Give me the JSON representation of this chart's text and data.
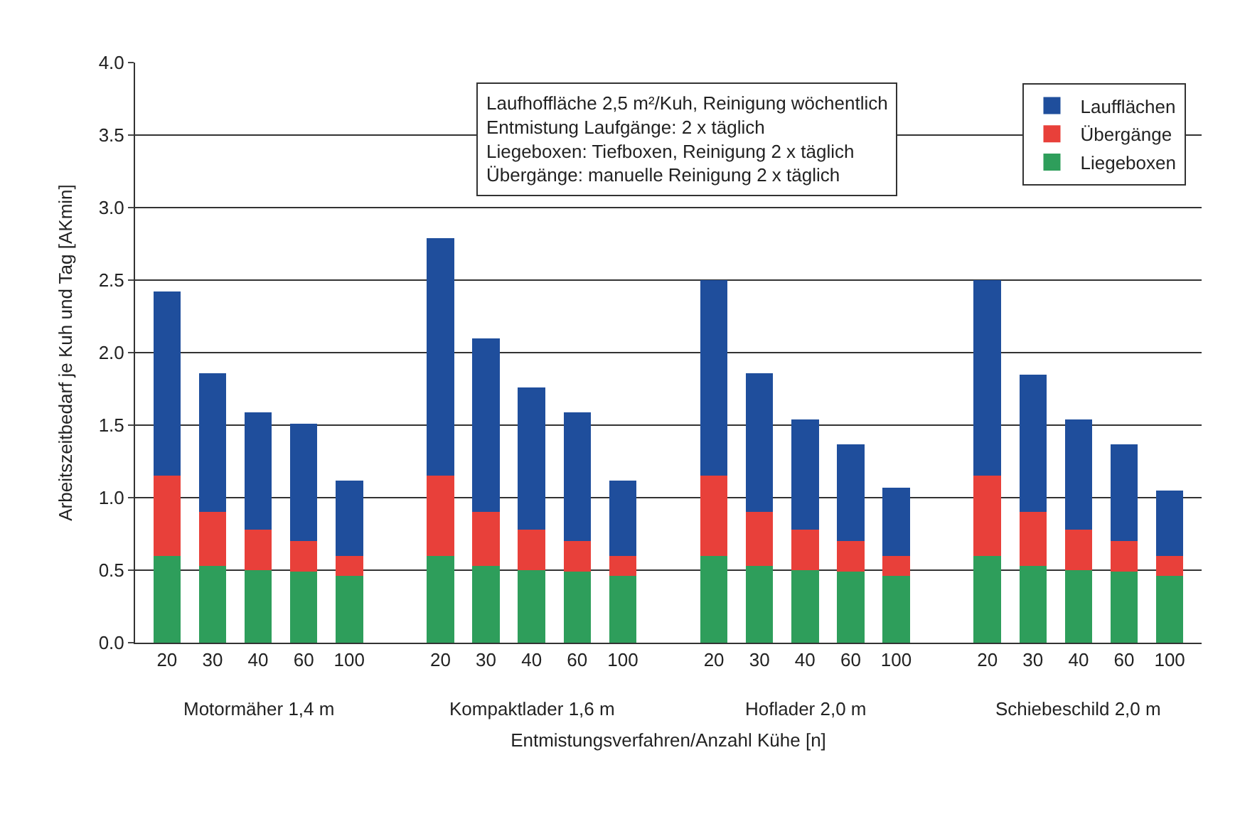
{
  "chart_data": {
    "type": "bar",
    "stacked": true,
    "xlabel": "Entmistungsverfahren/Anzahl Kühe [n]",
    "ylabel": "Arbeitszeitbedarf je Kuh und Tag [AKmin]",
    "categories": [
      "20",
      "30",
      "40",
      "60",
      "100",
      null,
      "20",
      "30",
      "40",
      "60",
      "100",
      null,
      "20",
      "30",
      "40",
      "60",
      "100",
      null,
      "20",
      "30",
      "40",
      "60",
      "100"
    ],
    "series": [
      {
        "name": "Liegeboxen",
        "color": "#2e9e5b",
        "values": [
          0.6,
          0.53,
          0.5,
          0.49,
          0.46,
          null,
          0.6,
          0.53,
          0.5,
          0.49,
          0.46,
          null,
          0.6,
          0.53,
          0.5,
          0.49,
          0.46,
          null,
          0.6,
          0.53,
          0.5,
          0.49,
          0.46
        ]
      },
      {
        "name": "Übergänge",
        "color": "#e8403a",
        "values": [
          0.55,
          0.37,
          0.28,
          0.21,
          0.14,
          null,
          0.55,
          0.37,
          0.28,
          0.21,
          0.14,
          null,
          0.55,
          0.37,
          0.28,
          0.21,
          0.14,
          null,
          0.55,
          0.37,
          0.28,
          0.21,
          0.14
        ]
      },
      {
        "name": "Laufflächen",
        "color": "#1f4e9c",
        "values": [
          1.27,
          0.96,
          0.81,
          0.81,
          0.52,
          null,
          1.64,
          1.2,
          0.98,
          0.89,
          0.52,
          null,
          1.35,
          0.96,
          0.76,
          0.67,
          0.47,
          null,
          1.35,
          0.95,
          0.76,
          0.67,
          0.45
        ]
      }
    ],
    "ylim": [
      0,
      4
    ],
    "yticks": [
      {
        "value": 0,
        "label": "0.0"
      },
      0.5,
      {
        "value": 1,
        "label": "1.0"
      },
      1.5,
      {
        "value": 2,
        "label": "2.0"
      },
      2.5,
      {
        "value": 3,
        "label": "3.0"
      },
      3.5,
      {
        "value": 4,
        "label": "4.0"
      }
    ],
    "grid": "y",
    "legend": "top right",
    "annotations": [
      "Motormäher 1,4 m",
      "Kompaktlader 1,6 m",
      "Hoflader 2,0 m",
      "Schiebeschild 2,0 m",
      "Laufhoffläche 2,5 m²/Kuh, Reinigung wöchentlich",
      "Entmistung Laufgänge: 2 x täglich",
      "Liegeboxen: Tiefboxen, Reinigung 2 x täglich",
      "Übergänge: manuelle Reinigung 2 x täglich"
    ]
  }
}
